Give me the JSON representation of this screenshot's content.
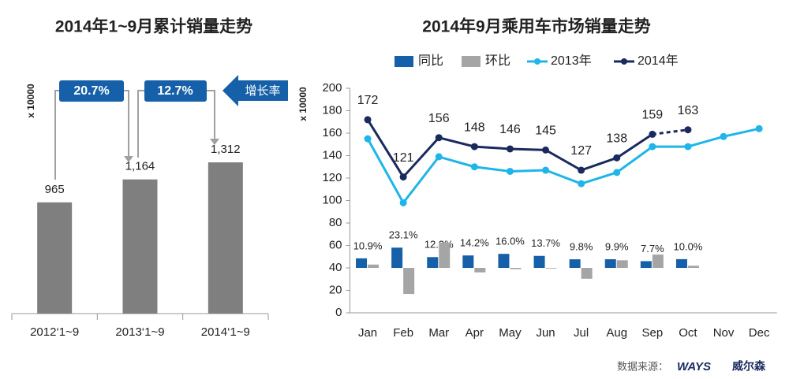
{
  "chart_data": [
    {
      "type": "bar",
      "title": "2014年1~9月累计销量走势",
      "y_label": "x 10000",
      "categories": [
        "2012‘1~9",
        "2013‘1~9",
        "2014‘1~9"
      ],
      "values": [
        965,
        1164,
        1312
      ],
      "value_labels": [
        "965",
        "1,164",
        "1,312"
      ],
      "color": "#7f7f7f",
      "annotations": [
        "20.7%",
        "12.7%",
        "增长率"
      ]
    },
    {
      "type": "combo",
      "title": "2014年9月乘用车市场销量走势",
      "y_label": "x 10000",
      "categories": [
        "Jan",
        "Feb",
        "Mar",
        "Apr",
        "May",
        "Jun",
        "Jul",
        "Aug",
        "Sep",
        "Oct",
        "Nov",
        "Dec"
      ],
      "ylim": [
        0,
        200
      ],
      "yticks": [
        0,
        20,
        40,
        60,
        80,
        100,
        120,
        140,
        160,
        180,
        200
      ],
      "y2lim": [
        -51.2,
        204.8
      ],
      "series": [
        {
          "name": "同比",
          "type": "bar",
          "axis": "y2",
          "color": "#1560a8",
          "values": [
            10.9,
            23.1,
            12.3,
            14.2,
            16.0,
            13.7,
            9.8,
            9.9,
            7.7,
            10.0,
            null,
            null
          ],
          "value_labels": [
            "10.9%",
            "23.1%",
            "12.3%",
            "14.2%",
            "16.0%",
            "13.7%",
            "9.8%",
            "9.9%",
            "7.7%",
            "10.0%",
            null,
            null
          ]
        },
        {
          "name": "环比",
          "type": "bar",
          "axis": "y2",
          "color": "#a5a5a5",
          "values": [
            3.8,
            -29.7,
            28.9,
            -5.1,
            -1.4,
            -0.7,
            -12.4,
            8.7,
            15.2,
            2.5,
            null,
            null
          ]
        },
        {
          "name": "2013年",
          "type": "line",
          "color": "#1fb5e8",
          "values": [
            155,
            98,
            139,
            130,
            126,
            127,
            115,
            125,
            148,
            148,
            157,
            164
          ]
        },
        {
          "name": "2014年",
          "type": "line",
          "color": "#1a2a5e",
          "dashed_last": true,
          "labels": true,
          "values": [
            172,
            121,
            156,
            148,
            146,
            145,
            127,
            138,
            159,
            163,
            null,
            null
          ]
        }
      ]
    }
  ],
  "footer": {
    "source": "数据来源：",
    "brand": "WAYS",
    "brand_cn": "威尔森"
  }
}
